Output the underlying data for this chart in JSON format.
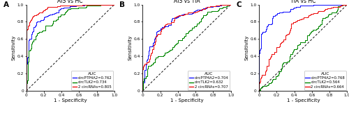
{
  "panels": [
    {
      "label": "A",
      "title": "AIS vs HC",
      "legend_title": "AUC",
      "lines": [
        {
          "name": "circPTP4A2=0.762",
          "color": "#1515FF",
          "auc": 0.762,
          "seed": 101
        },
        {
          "name": "circTLK2=0.734",
          "color": "#008800",
          "auc": 0.734,
          "seed": 202
        },
        {
          "name": "2 circRNAs=0.805",
          "color": "#EE1111",
          "auc": 0.805,
          "seed": 303
        }
      ]
    },
    {
      "label": "B",
      "title": "AIS vs TIA",
      "legend_title": "AUC",
      "lines": [
        {
          "name": "circPTP4A2=0.704",
          "color": "#1515FF",
          "auc": 0.704,
          "seed": 404
        },
        {
          "name": "circTLK2=0.632",
          "color": "#008800",
          "auc": 0.632,
          "seed": 505
        },
        {
          "name": "2 circRNAs=0.707",
          "color": "#EE1111",
          "auc": 0.707,
          "seed": 606
        }
      ]
    },
    {
      "label": "C",
      "title": "TIA vs HC",
      "legend_title": "AUC",
      "lines": [
        {
          "name": "circPTP4A2=0.768",
          "color": "#1515FF",
          "auc": 0.768,
          "seed": 707
        },
        {
          "name": "circTLK2=0.564",
          "color": "#008800",
          "auc": 0.564,
          "seed": 808
        },
        {
          "name": "2 circRNAs=0.664",
          "color": "#EE1111",
          "auc": 0.664,
          "seed": 909
        }
      ]
    }
  ],
  "xlabel": "1 - Specificity",
  "ylabel": "Sensitivity",
  "axis_ticks": [
    0.0,
    0.2,
    0.4,
    0.6,
    0.8,
    1.0
  ],
  "tick_labels": [
    "0",
    "0.2",
    "0.4",
    "0.6",
    "0.8",
    "1.0"
  ],
  "figsize": [
    5.0,
    1.63
  ],
  "dpi": 100,
  "title_fontsize": 5.5,
  "label_fontsize": 5.0,
  "tick_fontsize": 4.2,
  "legend_fontsize": 3.8,
  "legend_title_fontsize": 4.2,
  "panel_label_fontsize": 7.5
}
